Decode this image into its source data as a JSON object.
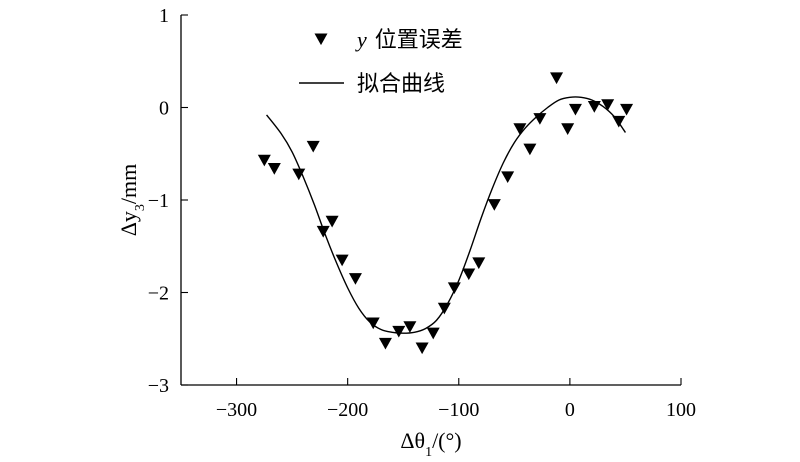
{
  "chart_data": {
    "type": "scatter",
    "xlabel_base": "Δθ",
    "xlabel_sub": "1",
    "xlabel_suffix": "/(°)",
    "ylabel_base": "Δy",
    "ylabel_sub": "3",
    "ylabel_suffix": "/mm",
    "xlim": [
      -350,
      100
    ],
    "ylim": [
      -3,
      1
    ],
    "xticks": [
      -300,
      -200,
      -100,
      0,
      100
    ],
    "yticks": [
      -3,
      -2,
      -1,
      0,
      1
    ],
    "xtick_labels": [
      "−300",
      "−200",
      "−100",
      "0",
      "100"
    ],
    "ytick_labels": [
      "−3",
      "−2",
      "−1",
      "0",
      "1"
    ],
    "legend": {
      "position": "top-center",
      "scatter_label_var": "y",
      "scatter_label_text": "位置误差",
      "line_label": "拟合曲线"
    },
    "series": [
      {
        "name": "y 位置误差",
        "kind": "scatter",
        "marker": "triangle-down",
        "points": [
          [
            -275,
            -0.57
          ],
          [
            -266,
            -0.66
          ],
          [
            -244,
            -0.72
          ],
          [
            -231,
            -0.42
          ],
          [
            -222,
            -1.34
          ],
          [
            -214,
            -1.23
          ],
          [
            -205,
            -1.65
          ],
          [
            -193,
            -1.85
          ],
          [
            -177,
            -2.33
          ],
          [
            -166,
            -2.55
          ],
          [
            -154,
            -2.42
          ],
          [
            -144,
            -2.37
          ],
          [
            -133,
            -2.6
          ],
          [
            -123,
            -2.44
          ],
          [
            -113,
            -2.17
          ],
          [
            -104,
            -1.95
          ],
          [
            -91,
            -1.8
          ],
          [
            -82,
            -1.68
          ],
          [
            -68,
            -1.05
          ],
          [
            -56,
            -0.75
          ],
          [
            -45,
            -0.23
          ],
          [
            -36,
            -0.45
          ],
          [
            -27,
            -0.12
          ],
          [
            -12,
            0.32
          ],
          [
            -2,
            -0.23
          ],
          [
            5,
            -0.02
          ],
          [
            22,
            0.01
          ],
          [
            34,
            0.03
          ],
          [
            44,
            -0.15
          ],
          [
            51,
            -0.02
          ]
        ]
      },
      {
        "name": "拟合曲线",
        "kind": "line",
        "x": [
          -273,
          -260,
          -250,
          -240,
          -230,
          -220,
          -210,
          -200,
          -190,
          -180,
          -170,
          -160,
          -150,
          -140,
          -130,
          -120,
          -110,
          -100,
          -90,
          -80,
          -70,
          -60,
          -50,
          -40,
          -30,
          -20,
          -10,
          0,
          10,
          20,
          30,
          40,
          50
        ],
        "y": [
          -0.08,
          -0.28,
          -0.48,
          -0.75,
          -1.05,
          -1.38,
          -1.68,
          -1.95,
          -2.17,
          -2.32,
          -2.4,
          -2.43,
          -2.44,
          -2.43,
          -2.39,
          -2.3,
          -2.12,
          -1.87,
          -1.55,
          -1.2,
          -0.88,
          -0.6,
          -0.38,
          -0.22,
          -0.1,
          0.0,
          0.08,
          0.11,
          0.11,
          0.08,
          0.01,
          -0.1,
          -0.27
        ]
      }
    ]
  }
}
